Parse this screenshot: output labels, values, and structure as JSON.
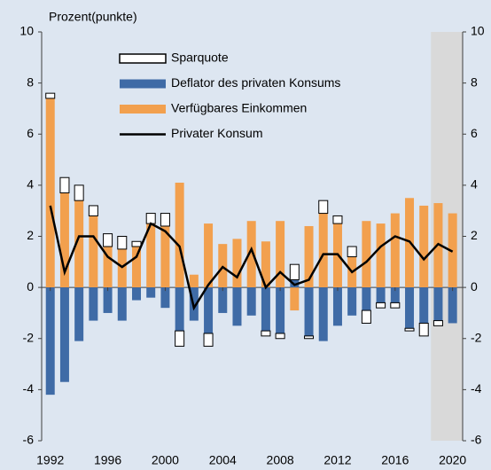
{
  "chart_data": {
    "type": "bar",
    "y_label": "Prozent(punkte)",
    "x": [
      1992,
      1993,
      1994,
      1995,
      1996,
      1997,
      1998,
      1999,
      2000,
      2001,
      2002,
      2003,
      2004,
      2005,
      2006,
      2007,
      2008,
      2009,
      2010,
      2011,
      2012,
      2013,
      2014,
      2015,
      2016,
      2017,
      2018,
      2019,
      2020
    ],
    "xlim": [
      1991.4,
      2020.7
    ],
    "xticks": [
      1992,
      1996,
      2000,
      2004,
      2008,
      2012,
      2016,
      2020
    ],
    "ylim": [
      -6,
      10
    ],
    "yticks": [
      -6,
      -4,
      -2,
      0,
      2,
      4,
      6,
      8,
      10
    ],
    "y2lim": [
      -6,
      10
    ],
    "y2ticks": [
      -6,
      -4,
      -2,
      0,
      2,
      4,
      6,
      8,
      10
    ],
    "shaded_range": [
      2018.5,
      2020.7
    ],
    "shade_color": "#d9d9d9",
    "stacked": true,
    "series": [
      {
        "name": "Sparquote",
        "kind": "bar",
        "color": "#ffffff",
        "values": [
          0.2,
          0.6,
          0.6,
          0.4,
          0.5,
          0.5,
          0.2,
          0.4,
          0.5,
          -0.6,
          0,
          -0.5,
          0,
          0,
          0,
          -0.2,
          -0.2,
          0.6,
          -0.1,
          0.5,
          0.3,
          0.4,
          -0.5,
          -0.2,
          -0.2,
          -0.1,
          -0.5,
          -0.2,
          0
        ]
      },
      {
        "name": "Deflator des privaten Konsums",
        "kind": "bar",
        "color": "#3f6ba6",
        "values": [
          -4.2,
          -3.7,
          -2.1,
          -1.3,
          -1.0,
          -1.3,
          -0.5,
          -0.4,
          -0.8,
          -1.7,
          -1.3,
          -1.8,
          -1.0,
          -1.5,
          -1.1,
          -1.7,
          -1.8,
          0.3,
          -1.9,
          -2.1,
          -1.5,
          -1.1,
          -0.9,
          -0.6,
          -0.6,
          -1.6,
          -1.4,
          -1.3,
          -1.4
        ]
      },
      {
        "name": "Verfügbares Einkommen",
        "kind": "bar",
        "color": "#f2a04e",
        "values": [
          7.4,
          3.7,
          3.4,
          2.8,
          1.6,
          1.5,
          1.6,
          2.5,
          2.4,
          4.1,
          0.5,
          2.5,
          1.7,
          1.9,
          2.6,
          1.8,
          2.6,
          -0.9,
          2.4,
          2.9,
          2.5,
          1.2,
          2.6,
          2.5,
          2.9,
          3.5,
          3.2,
          3.3,
          2.9
        ]
      },
      {
        "name": "Privater Konsum",
        "kind": "line",
        "color": "#000000",
        "values": [
          3.2,
          0.6,
          2.0,
          2.0,
          1.2,
          0.8,
          1.2,
          2.5,
          2.2,
          1.6,
          -0.8,
          0.1,
          0.8,
          0.4,
          1.5,
          0.0,
          0.6,
          0.1,
          0.3,
          1.3,
          1.3,
          0.6,
          1.0,
          1.6,
          2.0,
          1.8,
          1.1,
          1.7,
          1.4
        ]
      }
    ]
  }
}
